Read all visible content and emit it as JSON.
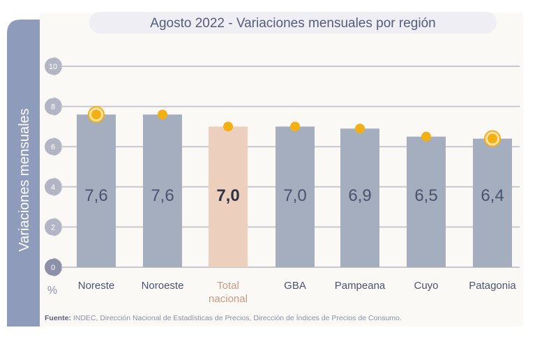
{
  "chart_data": {
    "type": "bar",
    "title": "Agosto 2022 - Variaciones mensuales por región",
    "ylabel": "Variaciones  mensuales",
    "yunit": "%",
    "ylim": [
      0,
      10
    ],
    "yticks": [
      "0",
      "2",
      "4",
      "6",
      "8",
      "10"
    ],
    "grid": true,
    "categories": [
      "Noreste",
      "Noroeste",
      "Total nacional",
      "GBA",
      "Pampeana",
      "Cuyo",
      "Patagonia"
    ],
    "values": [
      7.6,
      7.6,
      7.0,
      7.0,
      6.9,
      6.5,
      6.4
    ],
    "labels": [
      "7,6",
      "7,6",
      "7,0",
      "7,0",
      "6,9",
      "6,5",
      "6,4"
    ],
    "highlighted": [
      "Noreste",
      "Patagonia"
    ],
    "emphasized": "Total nacional",
    "source_label": "Fuente:",
    "source_text": " INDEC, Dirección Nacional de Estadísticas de Precios, Dirección de Índices de Precios de Consumo.",
    "colors": {
      "bar": "#a4aebf",
      "emphasis_bar": "#ecd0bd",
      "dot": "#f2b015",
      "side_band": "#8f9bbb",
      "panel": "#fbf9f6",
      "tick_badge": "#b3b5c4",
      "value_text": "#4b5270",
      "category_text": "#4b5270",
      "emphasis_text": "#c59b83"
    }
  }
}
